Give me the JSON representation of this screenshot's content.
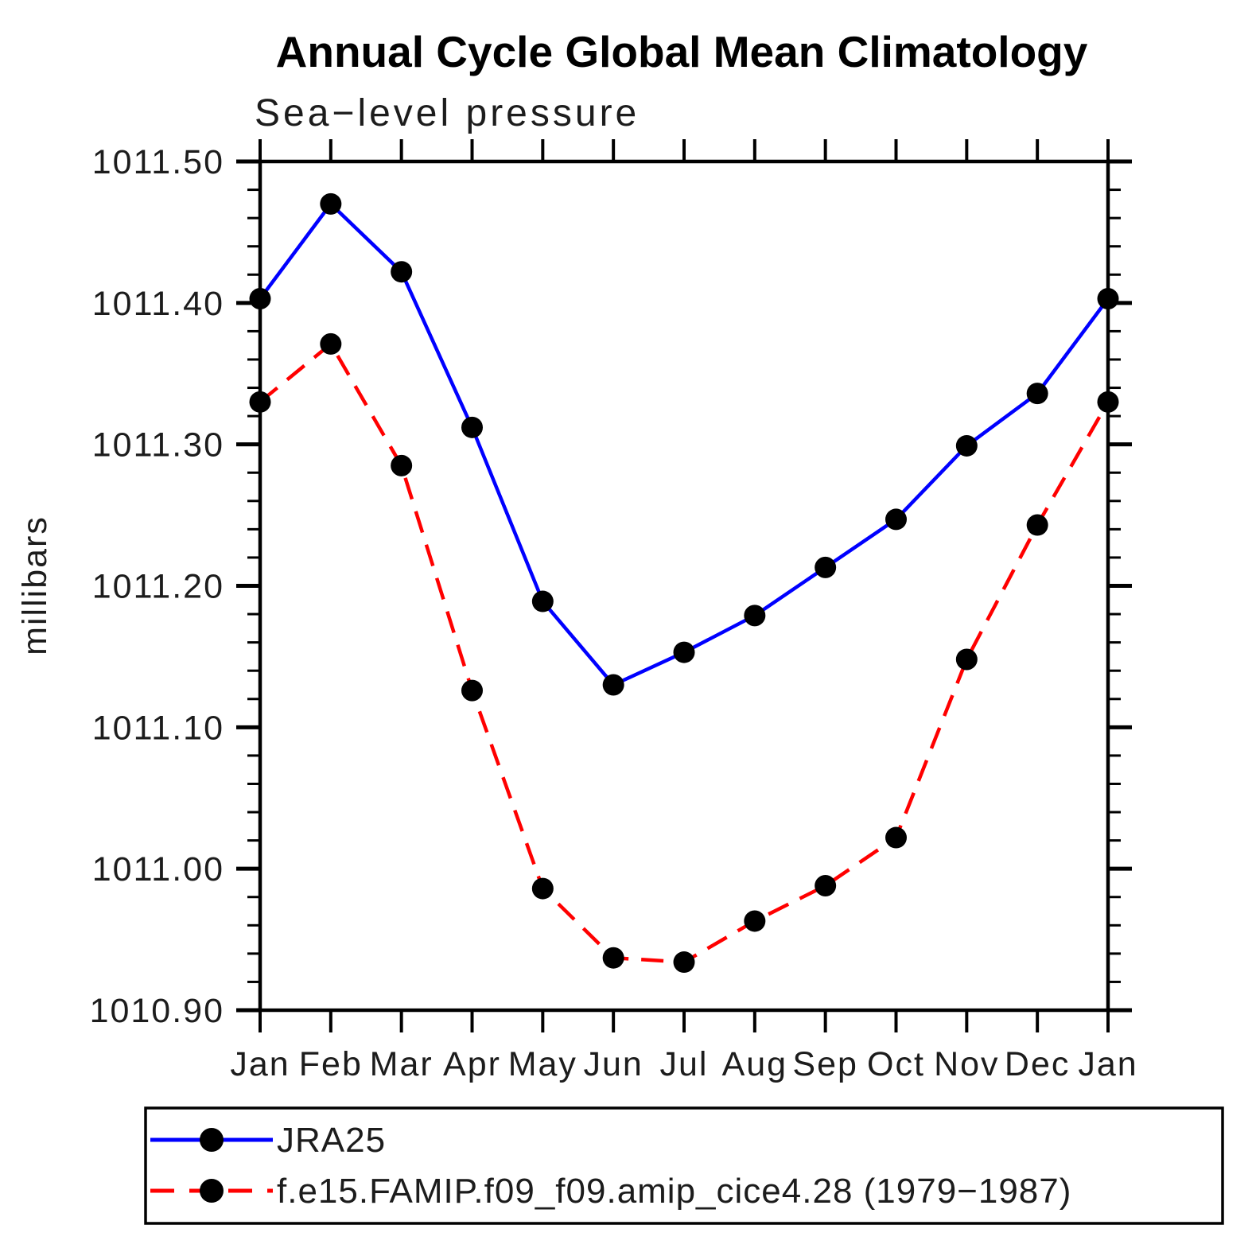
{
  "title": "Annual Cycle Global Mean Climatology",
  "subtitle": "Sea−level pressure",
  "chart_data": {
    "type": "line",
    "categories": [
      "Jan",
      "Feb",
      "Mar",
      "Apr",
      "May",
      "Jun",
      "Jul",
      "Aug",
      "Sep",
      "Oct",
      "Nov",
      "Dec",
      "Jan"
    ],
    "ylabel": "millibars",
    "ylim": [
      1010.9,
      1011.5
    ],
    "y_tick_major_step": 0.1,
    "y_tick_minor_step": 0.02,
    "y_tick_labels": [
      "1010.90",
      "1011.00",
      "1011.10",
      "1011.20",
      "1011.30",
      "1011.40",
      "1011.50"
    ],
    "grid": "off",
    "legend_position": "bottom",
    "series": [
      {
        "name": "JRA25",
        "color": "#0000ff",
        "line_style": "solid",
        "marker": "filled-circle",
        "marker_color": "#000000",
        "values": [
          1011.403,
          1011.47,
          1011.422,
          1011.312,
          1011.189,
          1011.13,
          1011.153,
          1011.179,
          1011.213,
          1011.247,
          1011.299,
          1011.336,
          1011.403
        ]
      },
      {
        "name": "f.e15.FAMIP.f09_f09.amip_cice4.28 (1979−1987)",
        "color": "#ff0000",
        "line_style": "dashed",
        "marker": "filled-circle",
        "marker_color": "#000000",
        "values": [
          1011.33,
          1011.371,
          1011.285,
          1011.126,
          1010.986,
          1010.937,
          1010.934,
          1010.963,
          1010.988,
          1011.022,
          1011.148,
          1011.243,
          1011.33
        ]
      }
    ]
  },
  "colors": {
    "axis": "#000000",
    "text": "#1c1c1c",
    "background": "#ffffff"
  }
}
